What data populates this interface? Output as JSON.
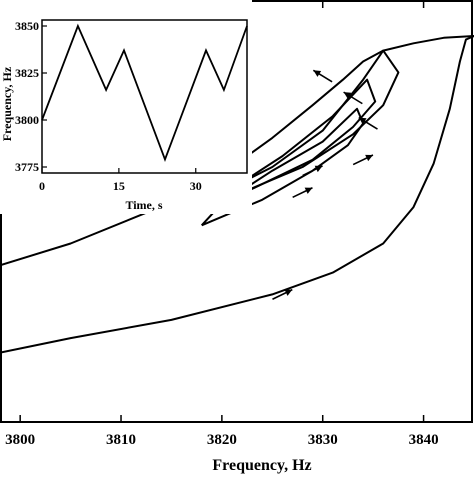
{
  "chart_data": [
    {
      "type": "line",
      "title": "",
      "xlabel": "Frequency, Hz",
      "ylabel": "",
      "xlim": [
        3798,
        3845
      ],
      "ylim": [
        0,
        1
      ],
      "x_ticks": [
        "3800",
        "3810",
        "3820",
        "3830",
        "3840"
      ],
      "grid": false,
      "legend": "none",
      "series": [
        {
          "curve": "outer-lower-sweep",
          "x": [
            3798,
            3805,
            3815,
            3825,
            3831,
            3836,
            3839,
            3841,
            3842.6,
            3843.6,
            3844.2,
            3845
          ],
          "y": [
            0.13,
            0.17,
            0.22,
            0.29,
            0.35,
            0.43,
            0.53,
            0.65,
            0.8,
            0.93,
            0.99,
            1.0
          ]
        },
        {
          "curve": "outer-upper-sweep",
          "x": [
            3798,
            3805,
            3813,
            3820,
            3825,
            3829,
            3832,
            3834,
            3836,
            3839,
            3842,
            3845
          ],
          "y": [
            0.37,
            0.43,
            0.52,
            0.62,
            0.72,
            0.81,
            0.88,
            0.93,
            0.96,
            0.98,
            0.995,
            1.0
          ]
        },
        {
          "curve": "loop-1",
          "x": [
            3816,
            3822,
            3828,
            3833,
            3836,
            3837.5,
            3836,
            3834,
            3830,
            3825,
            3820,
            3816
          ],
          "y": [
            0.52,
            0.57,
            0.64,
            0.73,
            0.81,
            0.9,
            0.96,
            0.88,
            0.74,
            0.64,
            0.57,
            0.52
          ]
        },
        {
          "curve": "loop-2",
          "x": [
            3817,
            3823,
            3829,
            3833,
            3835.2,
            3834.4,
            3831,
            3826,
            3821,
            3817
          ],
          "y": [
            0.52,
            0.58,
            0.66,
            0.75,
            0.82,
            0.88,
            0.78,
            0.67,
            0.58,
            0.52
          ]
        },
        {
          "curve": "loop-3",
          "x": [
            3818,
            3824,
            3829,
            3832.5,
            3834,
            3833.4,
            3830,
            3825,
            3820,
            3818
          ],
          "y": [
            0.48,
            0.55,
            0.63,
            0.7,
            0.76,
            0.8,
            0.71,
            0.63,
            0.54,
            0.48
          ]
        }
      ],
      "direction_arrows": [
        {
          "x": 3830,
          "y": 0.89,
          "direction": "left"
        },
        {
          "x": 3833,
          "y": 0.83,
          "direction": "left"
        },
        {
          "x": 3834.5,
          "y": 0.76,
          "direction": "left"
        },
        {
          "x": 3834,
          "y": 0.66,
          "direction": "right"
        },
        {
          "x": 3829,
          "y": 0.63,
          "direction": "right"
        },
        {
          "x": 3828,
          "y": 0.57,
          "direction": "right"
        },
        {
          "x": 3826,
          "y": 0.29,
          "direction": "right"
        }
      ]
    },
    {
      "type": "line",
      "title": "",
      "xlabel": "Time, s",
      "ylabel": "Frequency, Hz",
      "xlim": [
        0,
        40
      ],
      "ylim": [
        3775,
        3850
      ],
      "x_ticks": [
        "0",
        "15",
        "30"
      ],
      "y_ticks": [
        "3775",
        "3800",
        "3825",
        "3850"
      ],
      "grid": false,
      "series": [
        {
          "x": [
            0,
            7,
            12.5,
            16,
            24,
            32,
            35.5,
            40
          ],
          "y": [
            3800,
            3850,
            3816,
            3837,
            3779,
            3837,
            3816,
            3850
          ]
        }
      ]
    }
  ]
}
